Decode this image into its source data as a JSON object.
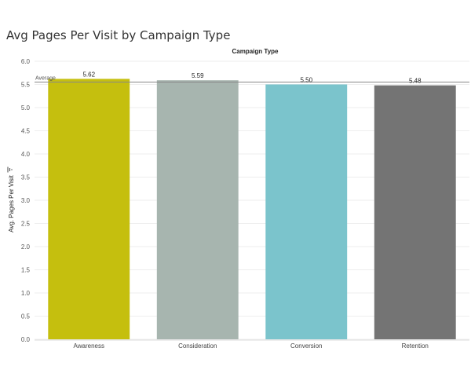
{
  "chart_data": {
    "type": "bar",
    "title": "Avg Pages Per Visit by Campaign Type",
    "column_header": "Campaign Type",
    "ylabel": "Avg. Pages Per Visit",
    "categories": [
      "Awareness",
      "Consideration",
      "Conversion",
      "Retention"
    ],
    "values": [
      5.62,
      5.59,
      5.5,
      5.48
    ],
    "data_labels": [
      "5.62",
      "5.59",
      "5.50",
      "5.48"
    ],
    "colors": [
      "#c5bf0e",
      "#a7b5af",
      "#7bc4cc",
      "#747474"
    ],
    "ylim": [
      0,
      6
    ],
    "yticks": [
      "0.0",
      "0.5",
      "1.0",
      "1.5",
      "2.0",
      "2.5",
      "3.0",
      "3.5",
      "4.0",
      "4.5",
      "5.0",
      "5.5",
      "6.0"
    ],
    "reference_line": {
      "label": "Average",
      "value": 5.55
    },
    "grid": true
  }
}
